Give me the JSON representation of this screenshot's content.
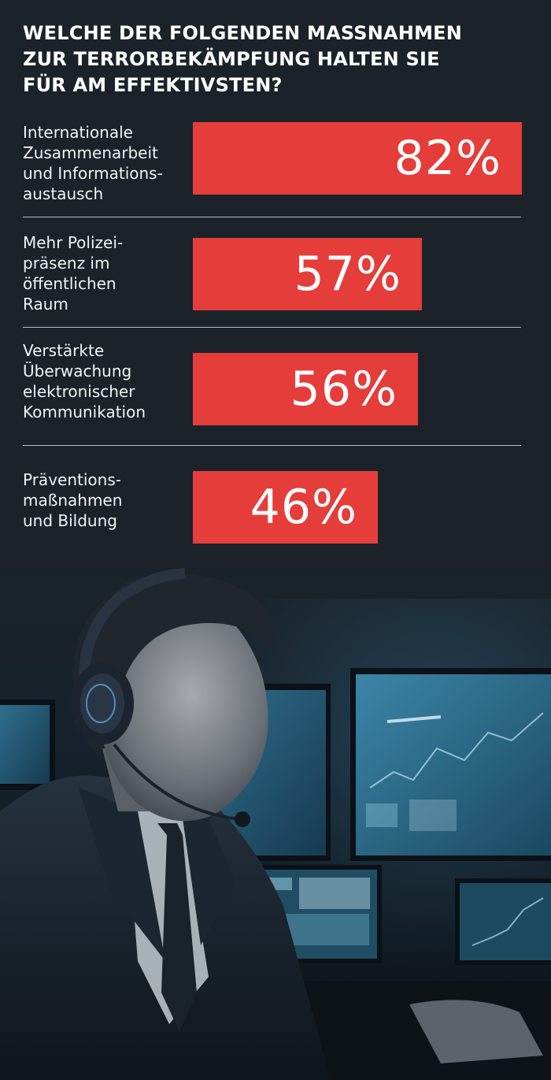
{
  "title": "WELCHE DER FOLGENDEN MASSNAHMEN\nZUR TERRORBEKÄMPFUNG HALTEN SIE\nFÜR AM EFFEKTIVSTEN?",
  "chart_data": {
    "type": "bar",
    "orientation": "horizontal",
    "title": "WELCHE DER FOLGENDEN MASSNAHMEN ZUR TERRORBEKÄMPFUNG HALTEN SIE FÜR AM EFFEKTIVSTEN?",
    "categories": [
      "Internationale Zusammenarbeit und Informations-austausch",
      "Mehr Polizei-präsenz im öffentlichen Raum",
      "Verstärkte Überwachung elektronischer Kommunikation",
      "Präventions-maßnahmen und Bildung"
    ],
    "values": [
      82,
      57,
      56,
      46
    ],
    "value_labels": [
      "82%",
      "57%",
      "56%",
      "46%"
    ],
    "unit": "%",
    "xlim": [
      0,
      100
    ],
    "bar_color": "#e53d3a",
    "grid": false,
    "legend": "none"
  },
  "rows": [
    {
      "label": "Internationale\nZusammenarbeit\nund Informations-\naustausch",
      "value_label": "82%"
    },
    {
      "label": "Mehr Polizei-\npräsenz im\nöffentlichen\nRaum",
      "value_label": "57%"
    },
    {
      "label": "Verstärkte\nÜberwachung\nelektronischer\nKommunikation",
      "value_label": "56%"
    },
    {
      "label": "Präventions-\nmaßnahmen\nund Bildung",
      "value_label": "46%"
    }
  ],
  "colors": {
    "background": "#1b2229",
    "bar": "#e53d3a",
    "text": "#ffffff",
    "divider": "#d7dbe0"
  },
  "photo": {
    "subject": "operator-with-headset-at-monitors"
  }
}
